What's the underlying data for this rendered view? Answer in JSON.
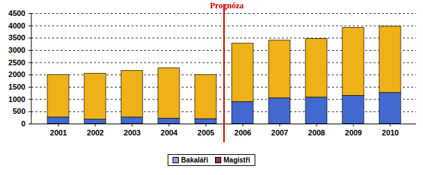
{
  "chart_data": {
    "type": "bar",
    "stacked": true,
    "categories": [
      "2001",
      "2002",
      "2003",
      "2004",
      "2005",
      "2006",
      "2007",
      "2008",
      "2009",
      "2010"
    ],
    "series": [
      {
        "name": "Bakaláři",
        "color": "#9999ff",
        "values": [
          270,
          180,
          270,
          220,
          200,
          900,
          1050,
          1080,
          1150,
          1270
        ]
      },
      {
        "name": "Magistři",
        "color": "#993366",
        "values": [
          1730,
          1870,
          1900,
          2050,
          1800,
          2380,
          2350,
          2390,
          2770,
          2700
        ]
      }
    ],
    "ylim": [
      0,
      4500
    ],
    "yticks": [
      0,
      500,
      1000,
      1500,
      2000,
      2500,
      3000,
      3500,
      4000,
      4500
    ],
    "grid": true,
    "legend": "bottom",
    "annotations": [
      {
        "text": "Prognóza",
        "after": "2005",
        "color": "#cc0000"
      }
    ]
  }
}
